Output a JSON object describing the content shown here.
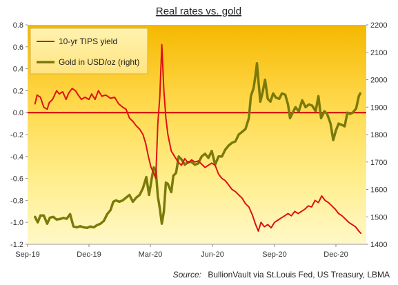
{
  "chart_data": {
    "type": "line",
    "title": "Real rates vs. gold",
    "source": {
      "label": "Source:",
      "text": "BullionVault via St.Louis Fed, US Treasury, LBMA"
    },
    "legend": {
      "placement": "top-left"
    },
    "x_axis": {
      "ticks": [
        "Sep-19",
        "Dec-19",
        "Mar-20",
        "Jun-20",
        "Sep-20",
        "Dec-20"
      ],
      "tick_dates": [
        "2019-09-01",
        "2019-12-01",
        "2020-03-01",
        "2020-06-01",
        "2020-09-01",
        "2020-12-01"
      ],
      "range": [
        "2019-09-01",
        "2021-01-15"
      ]
    },
    "y_left": {
      "ticks": [
        "0.8",
        "0.6",
        "0.4",
        "0.2",
        "0.0",
        "-0.2",
        "-0.4",
        "-0.6",
        "-0.8",
        "-1.0",
        "-1.2"
      ],
      "range": [
        -1.2,
        0.8
      ]
    },
    "y_right": {
      "ticks": [
        "2200",
        "2100",
        "2000",
        "1900",
        "1800",
        "1700",
        "1600",
        "1500",
        "1400"
      ],
      "range": [
        1400,
        2200
      ]
    },
    "zero_line": 0.0,
    "series": [
      {
        "name": "10-yr TIPS yield",
        "axis": "left",
        "color": "#dd1111",
        "points": [
          [
            "2019-09-12",
            0.08
          ],
          [
            "2019-09-15",
            0.16
          ],
          [
            "2019-09-20",
            0.14
          ],
          [
            "2019-09-25",
            0.05
          ],
          [
            "2019-09-30",
            0.03
          ],
          [
            "2019-10-03",
            0.09
          ],
          [
            "2019-10-08",
            0.12
          ],
          [
            "2019-10-14",
            0.2
          ],
          [
            "2019-10-18",
            0.17
          ],
          [
            "2019-10-23",
            0.19
          ],
          [
            "2019-10-28",
            0.12
          ],
          [
            "2019-11-01",
            0.18
          ],
          [
            "2019-11-06",
            0.22
          ],
          [
            "2019-11-11",
            0.2
          ],
          [
            "2019-11-15",
            0.16
          ],
          [
            "2019-11-20",
            0.12
          ],
          [
            "2019-11-25",
            0.14
          ],
          [
            "2019-12-01",
            0.12
          ],
          [
            "2019-12-05",
            0.17
          ],
          [
            "2019-12-10",
            0.12
          ],
          [
            "2019-12-15",
            0.2
          ],
          [
            "2019-12-20",
            0.15
          ],
          [
            "2019-12-26",
            0.16
          ],
          [
            "2020-01-02",
            0.13
          ],
          [
            "2020-01-08",
            0.14
          ],
          [
            "2020-01-14",
            0.08
          ],
          [
            "2020-01-20",
            0.05
          ],
          [
            "2020-01-25",
            0.03
          ],
          [
            "2020-01-30",
            -0.05
          ],
          [
            "2020-02-04",
            -0.08
          ],
          [
            "2020-02-09",
            -0.12
          ],
          [
            "2020-02-14",
            -0.15
          ],
          [
            "2020-02-19",
            -0.2
          ],
          [
            "2020-02-23",
            -0.28
          ],
          [
            "2020-02-27",
            -0.4
          ],
          [
            "2020-03-02",
            -0.5
          ],
          [
            "2020-03-06",
            -0.55
          ],
          [
            "2020-03-09",
            -0.6
          ],
          [
            "2020-03-12",
            -0.1
          ],
          [
            "2020-03-15",
            0.15
          ],
          [
            "2020-03-18",
            0.62
          ],
          [
            "2020-03-21",
            0.2
          ],
          [
            "2020-03-24",
            -0.05
          ],
          [
            "2020-03-27",
            -0.2
          ],
          [
            "2020-04-01",
            -0.35
          ],
          [
            "2020-04-06",
            -0.4
          ],
          [
            "2020-04-11",
            -0.45
          ],
          [
            "2020-04-16",
            -0.48
          ],
          [
            "2020-04-21",
            -0.42
          ],
          [
            "2020-04-26",
            -0.46
          ],
          [
            "2020-05-01",
            -0.43
          ],
          [
            "2020-05-06",
            -0.45
          ],
          [
            "2020-05-11",
            -0.44
          ],
          [
            "2020-05-16",
            -0.47
          ],
          [
            "2020-05-21",
            -0.5
          ],
          [
            "2020-05-26",
            -0.48
          ],
          [
            "2020-05-31",
            -0.46
          ],
          [
            "2020-06-05",
            -0.48
          ],
          [
            "2020-06-10",
            -0.56
          ],
          [
            "2020-06-15",
            -0.6
          ],
          [
            "2020-06-20",
            -0.62
          ],
          [
            "2020-06-25",
            -0.66
          ],
          [
            "2020-06-30",
            -0.7
          ],
          [
            "2020-07-05",
            -0.72
          ],
          [
            "2020-07-10",
            -0.75
          ],
          [
            "2020-07-15",
            -0.78
          ],
          [
            "2020-07-20",
            -0.83
          ],
          [
            "2020-07-25",
            -0.86
          ],
          [
            "2020-07-30",
            -0.93
          ],
          [
            "2020-08-04",
            -1.02
          ],
          [
            "2020-08-08",
            -1.08
          ],
          [
            "2020-08-12",
            -1.0
          ],
          [
            "2020-08-17",
            -1.04
          ],
          [
            "2020-08-22",
            -1.02
          ],
          [
            "2020-08-27",
            -1.05
          ],
          [
            "2020-09-01",
            -1.0
          ],
          [
            "2020-09-06",
            -0.98
          ],
          [
            "2020-09-11",
            -0.96
          ],
          [
            "2020-09-16",
            -0.94
          ],
          [
            "2020-09-21",
            -0.92
          ],
          [
            "2020-09-26",
            -0.94
          ],
          [
            "2020-10-01",
            -0.9
          ],
          [
            "2020-10-06",
            -0.92
          ],
          [
            "2020-10-11",
            -0.9
          ],
          [
            "2020-10-16",
            -0.88
          ],
          [
            "2020-10-21",
            -0.85
          ],
          [
            "2020-10-26",
            -0.86
          ],
          [
            "2020-10-31",
            -0.8
          ],
          [
            "2020-11-05",
            -0.82
          ],
          [
            "2020-11-10",
            -0.76
          ],
          [
            "2020-11-15",
            -0.8
          ],
          [
            "2020-11-20",
            -0.82
          ],
          [
            "2020-11-25",
            -0.85
          ],
          [
            "2020-11-30",
            -0.88
          ],
          [
            "2020-12-05",
            -0.92
          ],
          [
            "2020-12-10",
            -0.94
          ],
          [
            "2020-12-15",
            -0.97
          ],
          [
            "2020-12-20",
            -1.0
          ],
          [
            "2020-12-25",
            -1.02
          ],
          [
            "2020-12-30",
            -1.04
          ],
          [
            "2021-01-04",
            -1.08
          ],
          [
            "2021-01-07",
            -1.1
          ]
        ]
      },
      {
        "name": "Gold in USD/oz (right)",
        "axis": "right",
        "color": "#7a7a0a",
        "points": [
          [
            "2019-09-12",
            1500
          ],
          [
            "2019-09-16",
            1480
          ],
          [
            "2019-09-20",
            1505
          ],
          [
            "2019-09-25",
            1505
          ],
          [
            "2019-09-30",
            1475
          ],
          [
            "2019-10-04",
            1497
          ],
          [
            "2019-10-09",
            1500
          ],
          [
            "2019-10-14",
            1490
          ],
          [
            "2019-10-19",
            1492
          ],
          [
            "2019-10-24",
            1496
          ],
          [
            "2019-10-29",
            1493
          ],
          [
            "2019-11-03",
            1510
          ],
          [
            "2019-11-08",
            1465
          ],
          [
            "2019-11-13",
            1462
          ],
          [
            "2019-11-18",
            1466
          ],
          [
            "2019-11-23",
            1462
          ],
          [
            "2019-11-28",
            1460
          ],
          [
            "2019-12-03",
            1465
          ],
          [
            "2019-12-08",
            1462
          ],
          [
            "2019-12-13",
            1470
          ],
          [
            "2019-12-18",
            1475
          ],
          [
            "2019-12-23",
            1485
          ],
          [
            "2019-12-28",
            1510
          ],
          [
            "2020-01-02",
            1525
          ],
          [
            "2020-01-06",
            1555
          ],
          [
            "2020-01-10",
            1560
          ],
          [
            "2020-01-15",
            1555
          ],
          [
            "2020-01-20",
            1560
          ],
          [
            "2020-01-25",
            1570
          ],
          [
            "2020-01-30",
            1580
          ],
          [
            "2020-02-04",
            1555
          ],
          [
            "2020-02-09",
            1570
          ],
          [
            "2020-02-14",
            1580
          ],
          [
            "2020-02-19",
            1605
          ],
          [
            "2020-02-24",
            1645
          ],
          [
            "2020-02-28",
            1580
          ],
          [
            "2020-03-03",
            1640
          ],
          [
            "2020-03-06",
            1680
          ],
          [
            "2020-03-09",
            1672
          ],
          [
            "2020-03-12",
            1575
          ],
          [
            "2020-03-15",
            1530
          ],
          [
            "2020-03-18",
            1475
          ],
          [
            "2020-03-21",
            1520
          ],
          [
            "2020-03-24",
            1625
          ],
          [
            "2020-03-27",
            1620
          ],
          [
            "2020-04-01",
            1590
          ],
          [
            "2020-04-04",
            1650
          ],
          [
            "2020-04-08",
            1660
          ],
          [
            "2020-04-12",
            1720
          ],
          [
            "2020-04-16",
            1710
          ],
          [
            "2020-04-21",
            1690
          ],
          [
            "2020-04-26",
            1700
          ],
          [
            "2020-05-01",
            1700
          ],
          [
            "2020-05-06",
            1690
          ],
          [
            "2020-05-11",
            1695
          ],
          [
            "2020-05-16",
            1720
          ],
          [
            "2020-05-21",
            1730
          ],
          [
            "2020-05-26",
            1715
          ],
          [
            "2020-05-31",
            1740
          ],
          [
            "2020-06-05",
            1690
          ],
          [
            "2020-06-10",
            1720
          ],
          [
            "2020-06-15",
            1720
          ],
          [
            "2020-06-20",
            1745
          ],
          [
            "2020-06-25",
            1760
          ],
          [
            "2020-06-30",
            1770
          ],
          [
            "2020-07-05",
            1775
          ],
          [
            "2020-07-10",
            1800
          ],
          [
            "2020-07-15",
            1810
          ],
          [
            "2020-07-20",
            1820
          ],
          [
            "2020-07-25",
            1860
          ],
          [
            "2020-07-28",
            1940
          ],
          [
            "2020-08-01",
            1970
          ],
          [
            "2020-08-04",
            2020
          ],
          [
            "2020-08-06",
            2060
          ],
          [
            "2020-08-08",
            2000
          ],
          [
            "2020-08-11",
            1920
          ],
          [
            "2020-08-14",
            1950
          ],
          [
            "2020-08-18",
            2000
          ],
          [
            "2020-08-22",
            1930
          ],
          [
            "2020-08-26",
            1920
          ],
          [
            "2020-08-30",
            1950
          ],
          [
            "2020-09-03",
            1935
          ],
          [
            "2020-09-08",
            1930
          ],
          [
            "2020-09-12",
            1950
          ],
          [
            "2020-09-17",
            1945
          ],
          [
            "2020-09-21",
            1910
          ],
          [
            "2020-09-24",
            1860
          ],
          [
            "2020-09-28",
            1880
          ],
          [
            "2020-10-02",
            1900
          ],
          [
            "2020-10-07",
            1885
          ],
          [
            "2020-10-12",
            1925
          ],
          [
            "2020-10-17",
            1900
          ],
          [
            "2020-10-22",
            1910
          ],
          [
            "2020-10-27",
            1905
          ],
          [
            "2020-11-01",
            1885
          ],
          [
            "2020-11-05",
            1940
          ],
          [
            "2020-11-09",
            1860
          ],
          [
            "2020-11-14",
            1885
          ],
          [
            "2020-11-18",
            1875
          ],
          [
            "2020-11-23",
            1840
          ],
          [
            "2020-11-27",
            1780
          ],
          [
            "2020-12-01",
            1815
          ],
          [
            "2020-12-05",
            1840
          ],
          [
            "2020-12-10",
            1835
          ],
          [
            "2020-12-14",
            1830
          ],
          [
            "2020-12-18",
            1880
          ],
          [
            "2020-12-22",
            1875
          ],
          [
            "2020-12-26",
            1880
          ],
          [
            "2020-12-31",
            1895
          ],
          [
            "2021-01-04",
            1940
          ],
          [
            "2021-01-06",
            1950
          ]
        ]
      }
    ]
  }
}
